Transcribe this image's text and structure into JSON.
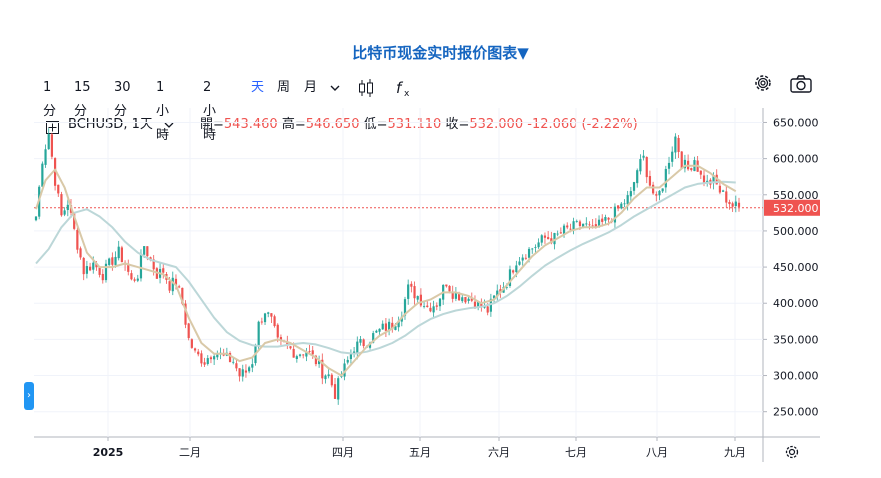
{
  "title": "比特币现金实时报价图表▼",
  "toolbar": {
    "timeframes": [
      "1分",
      "15分",
      "30分",
      "1小時",
      "2小時",
      "天",
      "周",
      "月"
    ],
    "active": "天",
    "icons": [
      "chevron-down-icon",
      "candlestick-icon",
      "indicator-fx-icon"
    ],
    "right_icons": [
      "gear-icon",
      "camera-icon"
    ]
  },
  "legend": {
    "symbol": "BCHUSD, 1天",
    "open_label": "開=",
    "open": "543.460",
    "high_label": "高=",
    "high": "546.650",
    "low_label": "低=",
    "low": "531.110",
    "close_label": "收=",
    "close": "532.000",
    "change": "-12.060 (-2.22%)"
  },
  "colors": {
    "up": "#26a69a",
    "down": "#ef5350",
    "ma_short": "#d9c9a8",
    "ma_long": "#bcd7d8",
    "price_tag": "#ef5350"
  },
  "chart_data": {
    "type": "candlestick",
    "y_ticks": [
      "650.000",
      "600.000",
      "550.000",
      "500.000",
      "450.000",
      "400.000",
      "350.000",
      "300.000",
      "250.000"
    ],
    "ylim": [
      215,
      670
    ],
    "x_tick_labels": [
      "2025",
      "二月",
      "四月",
      "五月",
      "六月",
      "七月",
      "八月",
      "九月"
    ],
    "last_price": "532.000",
    "close_path": [
      [
        0,
        520
      ],
      [
        2,
        600
      ],
      [
        4,
        635
      ],
      [
        6,
        570
      ],
      [
        8,
        520
      ],
      [
        10,
        540
      ],
      [
        12,
        500
      ],
      [
        15,
        445
      ],
      [
        18,
        455
      ],
      [
        21,
        440
      ],
      [
        24,
        460
      ],
      [
        26,
        470
      ],
      [
        28,
        455
      ],
      [
        30,
        430
      ],
      [
        32,
        440
      ],
      [
        34,
        480
      ],
      [
        36,
        460
      ],
      [
        38,
        440
      ],
      [
        40,
        445
      ],
      [
        42,
        425
      ],
      [
        44,
        430
      ],
      [
        46,
        400
      ],
      [
        48,
        350
      ],
      [
        50,
        330
      ],
      [
        53,
        320
      ],
      [
        56,
        335
      ],
      [
        59,
        325
      ],
      [
        62,
        320
      ],
      [
        64,
        300
      ],
      [
        66,
        305
      ],
      [
        68,
        320
      ],
      [
        70,
        370
      ],
      [
        72,
        390
      ],
      [
        74,
        375
      ],
      [
        76,
        345
      ],
      [
        79,
        340
      ],
      [
        82,
        330
      ],
      [
        85,
        335
      ],
      [
        88,
        320
      ],
      [
        90,
        305
      ],
      [
        92,
        300
      ],
      [
        94,
        275
      ],
      [
        96,
        300
      ],
      [
        98,
        320
      ],
      [
        100,
        340
      ],
      [
        103,
        345
      ],
      [
        106,
        355
      ],
      [
        109,
        365
      ],
      [
        112,
        370
      ],
      [
        115,
        390
      ],
      [
        117,
        420
      ],
      [
        120,
        410
      ],
      [
        123,
        395
      ],
      [
        126,
        400
      ],
      [
        129,
        430
      ],
      [
        131,
        415
      ],
      [
        134,
        410
      ],
      [
        137,
        405
      ],
      [
        140,
        395
      ],
      [
        142,
        390
      ],
      [
        145,
        415
      ],
      [
        148,
        430
      ],
      [
        151,
        460
      ],
      [
        154,
        470
      ],
      [
        157,
        480
      ],
      [
        160,
        490
      ],
      [
        163,
        490
      ],
      [
        166,
        500
      ],
      [
        169,
        505
      ],
      [
        172,
        510
      ],
      [
        175,
        500
      ],
      [
        178,
        510
      ],
      [
        181,
        520
      ],
      [
        184,
        535
      ],
      [
        187,
        550
      ],
      [
        189,
        585
      ],
      [
        191,
        600
      ],
      [
        193,
        565
      ],
      [
        195,
        540
      ],
      [
        197,
        565
      ],
      [
        199,
        600
      ],
      [
        201,
        630
      ],
      [
        203,
        595
      ],
      [
        205,
        585
      ],
      [
        207,
        600
      ],
      [
        209,
        575
      ],
      [
        211,
        565
      ],
      [
        213,
        570
      ],
      [
        215,
        555
      ],
      [
        217,
        545
      ],
      [
        219,
        535
      ],
      [
        221,
        532
      ]
    ],
    "ma_short_path": [
      [
        0,
        530
      ],
      [
        3,
        570
      ],
      [
        6,
        585
      ],
      [
        9,
        560
      ],
      [
        12,
        520
      ],
      [
        16,
        470
      ],
      [
        20,
        450
      ],
      [
        24,
        450
      ],
      [
        28,
        455
      ],
      [
        32,
        450
      ],
      [
        36,
        445
      ],
      [
        40,
        440
      ],
      [
        44,
        425
      ],
      [
        48,
        380
      ],
      [
        52,
        345
      ],
      [
        56,
        330
      ],
      [
        60,
        330
      ],
      [
        64,
        320
      ],
      [
        68,
        325
      ],
      [
        72,
        345
      ],
      [
        76,
        350
      ],
      [
        80,
        345
      ],
      [
        84,
        335
      ],
      [
        88,
        325
      ],
      [
        92,
        310
      ],
      [
        96,
        300
      ],
      [
        100,
        320
      ],
      [
        104,
        340
      ],
      [
        108,
        355
      ],
      [
        112,
        365
      ],
      [
        116,
        385
      ],
      [
        120,
        400
      ],
      [
        124,
        405
      ],
      [
        128,
        415
      ],
      [
        132,
        415
      ],
      [
        136,
        410
      ],
      [
        140,
        400
      ],
      [
        144,
        405
      ],
      [
        148,
        425
      ],
      [
        152,
        445
      ],
      [
        156,
        465
      ],
      [
        160,
        480
      ],
      [
        164,
        490
      ],
      [
        168,
        500
      ],
      [
        172,
        505
      ],
      [
        176,
        505
      ],
      [
        180,
        510
      ],
      [
        184,
        525
      ],
      [
        188,
        545
      ],
      [
        192,
        560
      ],
      [
        196,
        560
      ],
      [
        200,
        575
      ],
      [
        204,
        590
      ],
      [
        208,
        590
      ],
      [
        212,
        580
      ],
      [
        216,
        565
      ],
      [
        220,
        555
      ]
    ],
    "ma_long_path": [
      [
        0,
        455
      ],
      [
        4,
        475
      ],
      [
        8,
        505
      ],
      [
        12,
        525
      ],
      [
        16,
        530
      ],
      [
        20,
        520
      ],
      [
        24,
        505
      ],
      [
        28,
        485
      ],
      [
        32,
        470
      ],
      [
        36,
        460
      ],
      [
        40,
        455
      ],
      [
        44,
        450
      ],
      [
        48,
        430
      ],
      [
        52,
        405
      ],
      [
        56,
        380
      ],
      [
        60,
        360
      ],
      [
        64,
        348
      ],
      [
        68,
        342
      ],
      [
        72,
        340
      ],
      [
        76,
        340
      ],
      [
        80,
        343
      ],
      [
        84,
        345
      ],
      [
        88,
        343
      ],
      [
        92,
        338
      ],
      [
        96,
        332
      ],
      [
        100,
        330
      ],
      [
        104,
        333
      ],
      [
        108,
        338
      ],
      [
        112,
        345
      ],
      [
        116,
        355
      ],
      [
        120,
        368
      ],
      [
        124,
        378
      ],
      [
        128,
        385
      ],
      [
        132,
        390
      ],
      [
        136,
        393
      ],
      [
        140,
        395
      ],
      [
        144,
        400
      ],
      [
        148,
        410
      ],
      [
        152,
        423
      ],
      [
        156,
        438
      ],
      [
        160,
        452
      ],
      [
        164,
        463
      ],
      [
        168,
        473
      ],
      [
        172,
        482
      ],
      [
        176,
        490
      ],
      [
        180,
        498
      ],
      [
        184,
        508
      ],
      [
        188,
        520
      ],
      [
        192,
        530
      ],
      [
        196,
        540
      ],
      [
        200,
        550
      ],
      [
        204,
        560
      ],
      [
        208,
        565
      ],
      [
        212,
        567
      ],
      [
        216,
        568
      ],
      [
        220,
        567
      ]
    ]
  }
}
